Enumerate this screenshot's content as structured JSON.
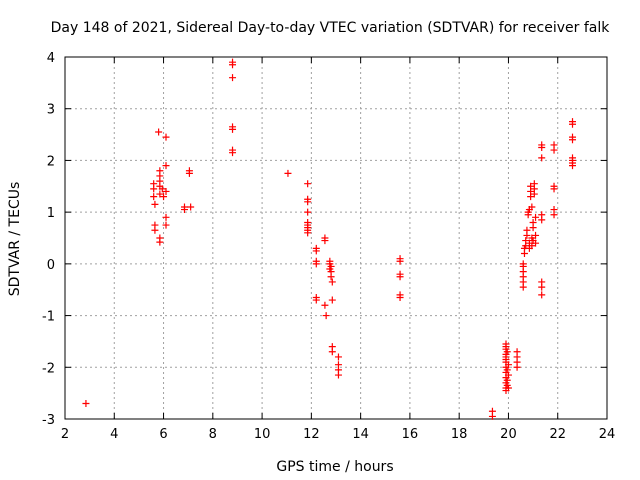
{
  "chart_data": {
    "type": "scatter",
    "title": "Day 148 of 2021, Sidereal Day-to-day VTEC variation (SDTVAR) for receiver falk",
    "xlabel": "GPS time / hours",
    "ylabel": "SDTVAR / TECUs",
    "xlim": [
      2,
      24
    ],
    "ylim": [
      -3,
      4
    ],
    "xticks": [
      2,
      4,
      6,
      8,
      10,
      12,
      14,
      16,
      18,
      20,
      22,
      24
    ],
    "yticks": [
      -3,
      -2,
      -1,
      0,
      1,
      2,
      3,
      4
    ],
    "grid": true,
    "marker": "+",
    "color": "#ff0000",
    "series": [
      {
        "name": "SDTVAR",
        "points": [
          [
            2.85,
            -2.7
          ],
          [
            5.6,
            1.55
          ],
          [
            5.6,
            1.45
          ],
          [
            5.6,
            1.3
          ],
          [
            5.65,
            1.15
          ],
          [
            5.65,
            0.75
          ],
          [
            5.65,
            0.65
          ],
          [
            5.8,
            2.55
          ],
          [
            5.85,
            1.8
          ],
          [
            5.85,
            1.7
          ],
          [
            5.85,
            1.6
          ],
          [
            5.85,
            1.5
          ],
          [
            5.85,
            1.35
          ],
          [
            5.85,
            0.5
          ],
          [
            5.85,
            0.42
          ],
          [
            5.95,
            1.45
          ],
          [
            6.0,
            1.3
          ],
          [
            6.1,
            2.45
          ],
          [
            6.1,
            1.9
          ],
          [
            6.1,
            1.4
          ],
          [
            6.1,
            0.9
          ],
          [
            6.1,
            0.75
          ],
          [
            6.85,
            1.1
          ],
          [
            6.85,
            1.05
          ],
          [
            7.05,
            1.8
          ],
          [
            7.05,
            1.75
          ],
          [
            7.1,
            1.1
          ],
          [
            8.8,
            3.9
          ],
          [
            8.8,
            3.85
          ],
          [
            8.8,
            3.6
          ],
          [
            8.8,
            2.65
          ],
          [
            8.8,
            2.6
          ],
          [
            8.8,
            2.2
          ],
          [
            8.8,
            2.15
          ],
          [
            11.05,
            1.75
          ],
          [
            11.85,
            1.55
          ],
          [
            11.85,
            1.25
          ],
          [
            11.85,
            1.2
          ],
          [
            11.85,
            1.0
          ],
          [
            11.85,
            0.8
          ],
          [
            11.85,
            0.75
          ],
          [
            11.85,
            0.7
          ],
          [
            11.85,
            0.65
          ],
          [
            11.85,
            0.6
          ],
          [
            12.2,
            0.3
          ],
          [
            12.2,
            0.25
          ],
          [
            12.2,
            0.05
          ],
          [
            12.2,
            0.0
          ],
          [
            12.2,
            -0.65
          ],
          [
            12.2,
            -0.7
          ],
          [
            12.55,
            0.5
          ],
          [
            12.55,
            0.45
          ],
          [
            12.55,
            -0.8
          ],
          [
            12.6,
            -1.0
          ],
          [
            12.75,
            0.05
          ],
          [
            12.75,
            0.0
          ],
          [
            12.75,
            -0.1
          ],
          [
            12.8,
            -0.05
          ],
          [
            12.8,
            -0.15
          ],
          [
            12.8,
            -0.25
          ],
          [
            12.85,
            -0.35
          ],
          [
            12.85,
            -0.7
          ],
          [
            12.85,
            -1.6
          ],
          [
            12.85,
            -1.7
          ],
          [
            13.1,
            -1.8
          ],
          [
            13.1,
            -1.95
          ],
          [
            13.1,
            -2.05
          ],
          [
            13.1,
            -2.15
          ],
          [
            15.6,
            0.1
          ],
          [
            15.6,
            0.05
          ],
          [
            15.6,
            -0.2
          ],
          [
            15.6,
            -0.25
          ],
          [
            15.6,
            -0.6
          ],
          [
            15.6,
            -0.65
          ],
          [
            19.35,
            -2.85
          ],
          [
            19.35,
            -2.95
          ],
          [
            19.9,
            -1.55
          ],
          [
            19.9,
            -1.6
          ],
          [
            19.9,
            -1.65
          ],
          [
            19.9,
            -1.75
          ],
          [
            19.9,
            -1.8
          ],
          [
            19.9,
            -1.85
          ],
          [
            19.9,
            -1.9
          ],
          [
            19.9,
            -2.0
          ],
          [
            19.9,
            -2.1
          ],
          [
            19.9,
            -2.2
          ],
          [
            19.9,
            -2.3
          ],
          [
            19.9,
            -2.4
          ],
          [
            19.9,
            -2.45
          ],
          [
            19.95,
            -1.7
          ],
          [
            19.95,
            -2.05
          ],
          [
            19.95,
            -2.25
          ],
          [
            19.95,
            -2.35
          ],
          [
            20.0,
            -1.95
          ],
          [
            20.0,
            -2.15
          ],
          [
            20.0,
            -2.4
          ],
          [
            20.35,
            -1.7
          ],
          [
            20.35,
            -1.8
          ],
          [
            20.35,
            -1.9
          ],
          [
            20.35,
            -2.0
          ],
          [
            20.6,
            -0.45
          ],
          [
            20.6,
            -0.35
          ],
          [
            20.6,
            -0.25
          ],
          [
            20.6,
            -0.15
          ],
          [
            20.6,
            -0.05
          ],
          [
            20.6,
            0.0
          ],
          [
            20.65,
            0.2
          ],
          [
            20.65,
            0.3
          ],
          [
            20.7,
            0.35
          ],
          [
            20.7,
            0.45
          ],
          [
            20.75,
            0.55
          ],
          [
            20.75,
            0.65
          ],
          [
            20.8,
            0.95
          ],
          [
            20.8,
            1.0
          ],
          [
            20.85,
            1.05
          ],
          [
            20.85,
            0.3
          ],
          [
            20.85,
            0.4
          ],
          [
            20.9,
            1.3
          ],
          [
            20.9,
            1.4
          ],
          [
            20.9,
            1.5
          ],
          [
            20.95,
            1.1
          ],
          [
            20.95,
            0.5
          ],
          [
            20.95,
            0.35
          ],
          [
            21.0,
            0.7
          ],
          [
            21.0,
            0.8
          ],
          [
            21.0,
            0.45
          ],
          [
            21.05,
            1.55
          ],
          [
            21.05,
            1.45
          ],
          [
            21.05,
            1.35
          ],
          [
            21.1,
            0.9
          ],
          [
            21.1,
            0.55
          ],
          [
            21.1,
            0.4
          ],
          [
            21.35,
            2.3
          ],
          [
            21.35,
            2.25
          ],
          [
            21.35,
            2.05
          ],
          [
            21.35,
            0.95
          ],
          [
            21.35,
            0.85
          ],
          [
            21.35,
            -0.35
          ],
          [
            21.35,
            -0.45
          ],
          [
            21.35,
            -0.6
          ],
          [
            21.85,
            2.3
          ],
          [
            21.85,
            2.2
          ],
          [
            21.85,
            1.5
          ],
          [
            21.85,
            1.45
          ],
          [
            21.85,
            1.05
          ],
          [
            21.85,
            0.95
          ],
          [
            22.6,
            2.75
          ],
          [
            22.6,
            2.7
          ],
          [
            22.6,
            2.45
          ],
          [
            22.6,
            2.4
          ],
          [
            22.6,
            2.05
          ],
          [
            22.6,
            2.0
          ],
          [
            22.6,
            1.95
          ],
          [
            22.6,
            1.9
          ]
        ]
      }
    ]
  }
}
